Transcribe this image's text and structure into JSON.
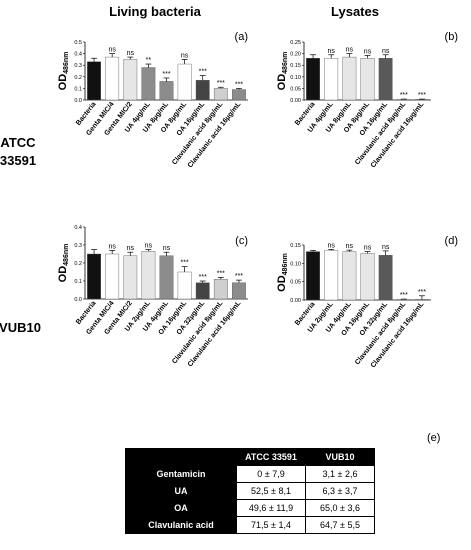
{
  "headers": {
    "col1": "Living bacteria",
    "col2": "Lysates",
    "row1": [
      "ATCC",
      "33591"
    ],
    "row2": "VUB10"
  },
  "y_label_main": "OD",
  "y_label_sub": "486nm",
  "sig_labels": {
    "ns": "ns",
    "s2": "**",
    "s3": "***"
  },
  "colors": {
    "black": "#111111",
    "white": "#ffffff",
    "light": "#e6e6e6",
    "lightgray": "#cfcfcf",
    "gray": "#8c8c8c",
    "dark": "#595959",
    "darker": "#444444"
  },
  "chart_data": [
    {
      "type": "bar",
      "panel": "(a)",
      "ylim": [
        0,
        0.5
      ],
      "yticks": [
        "0.0",
        "0.1",
        "0.2",
        "0.3",
        "0.4",
        "0.5"
      ],
      "ytick_values": [
        0,
        0.1,
        0.2,
        0.3,
        0.4,
        0.5
      ],
      "categories": [
        "Bacteria",
        "Genta MIC/4",
        "Genta MIC/2",
        "UA 4µg/mL",
        "UA 8µg/mL",
        "OA 8µg/mL",
        "OA 16µg/mL",
        "Clavulanic acid 8µg/mL",
        "Clavulanic acid 16µg/mL"
      ],
      "values": [
        0.33,
        0.37,
        0.35,
        0.28,
        0.16,
        0.31,
        0.17,
        0.1,
        0.09
      ],
      "errors": [
        0.03,
        0.03,
        0.02,
        0.03,
        0.03,
        0.04,
        0.04,
        0.01,
        0.01
      ],
      "significance": [
        "",
        "ns",
        "ns",
        "**",
        "***",
        "ns",
        "***",
        "***",
        "***"
      ],
      "colors": [
        "black",
        "white",
        "light",
        "gray",
        "gray",
        "white",
        "darker",
        "lightgray",
        "gray"
      ]
    },
    {
      "type": "bar",
      "panel": "(b)",
      "ylim": [
        0,
        0.25
      ],
      "yticks": [
        "0.00",
        "0.05",
        "0.10",
        "0.15",
        "0.20",
        "0.25"
      ],
      "ytick_values": [
        0,
        0.05,
        0.1,
        0.15,
        0.2,
        0.25
      ],
      "categories": [
        "Bacteria",
        "UA 4µg/mL",
        "UA 8µg/mL",
        "OA 8µg/mL",
        "OA 16µg/mL",
        "Clavulanic acid 8µg/mL",
        "Clavulanic acid 16µg/mL"
      ],
      "values": [
        0.18,
        0.18,
        0.185,
        0.18,
        0.18,
        0.002,
        0.002
      ],
      "errors": [
        0.015,
        0.015,
        0.015,
        0.012,
        0.015,
        0.002,
        0.002
      ],
      "significance": [
        "",
        "ns",
        "ns",
        "ns",
        "ns",
        "***",
        "***"
      ],
      "colors": [
        "black",
        "white",
        "light",
        "light",
        "dark",
        "lightgray",
        "gray"
      ]
    },
    {
      "type": "bar",
      "panel": "(c)",
      "ylim": [
        0,
        0.4
      ],
      "yticks": [
        "0.0",
        "0.1",
        "0.2",
        "0.3",
        "0.4"
      ],
      "ytick_values": [
        0,
        0.1,
        0.2,
        0.3,
        0.4
      ],
      "categories": [
        "Bacteria",
        "Genta MIC/4",
        "Genta MIC/2",
        "UA 2µg/mL",
        "UA 4µg/mL",
        "OA 16µg/mL",
        "OA 32µg/mL",
        "Clavulanic acid 8µg/mL",
        "Clavulanic acid 16µg/mL"
      ],
      "values": [
        0.25,
        0.25,
        0.24,
        0.265,
        0.24,
        0.15,
        0.09,
        0.11,
        0.09
      ],
      "errors": [
        0.025,
        0.02,
        0.02,
        0.01,
        0.02,
        0.03,
        0.01,
        0.01,
        0.015
      ],
      "significance": [
        "",
        "ns",
        "ns",
        "ns",
        "ns",
        "***",
        "***",
        "***",
        "***"
      ],
      "colors": [
        "black",
        "white",
        "light",
        "light",
        "gray",
        "white",
        "darker",
        "lightgray",
        "gray"
      ]
    },
    {
      "type": "bar",
      "panel": "(d)",
      "ylim": [
        0,
        0.15
      ],
      "yticks": [
        "0.00",
        "0.05",
        "0.10",
        "0.15"
      ],
      "ytick_values": [
        0,
        0.05,
        0.1,
        0.15
      ],
      "categories": [
        "Bacteria",
        "UA 2µg/mL",
        "UA 4µg/mL",
        "OA 16µg/mL",
        "OA 32µg/mL",
        "Clavulanic acid 8µg/mL",
        "Clavulanic acid 16µg/mL"
      ],
      "values": [
        0.132,
        0.135,
        0.132,
        0.127,
        0.122,
        0.0015,
        0.0015
      ],
      "errors": [
        0.003,
        0.003,
        0.004,
        0.005,
        0.012,
        0.001,
        0.01
      ],
      "significance": [
        "",
        "ns",
        "ns",
        "ns",
        "ns",
        "***",
        "***"
      ],
      "colors": [
        "black",
        "white",
        "light",
        "light",
        "dark",
        "lightgray",
        "gray"
      ]
    }
  ],
  "table": {
    "panel": "(e)",
    "columns": [
      "ATCC 33591",
      "VUB10"
    ],
    "rows": [
      {
        "label": "Gentamicin",
        "values": [
          "0 ± 7,9",
          "3,1 ± 2,6"
        ]
      },
      {
        "label": "UA",
        "values": [
          "52,5 ± 8,1",
          "6,3 ± 3,7"
        ]
      },
      {
        "label": "OA",
        "values": [
          "49,6 ± 11,9",
          "65,0 ± 3,6"
        ]
      },
      {
        "label": "Clavulanic acid",
        "values": [
          "71,5 ± 1,4",
          "64,7 ± 5,5"
        ]
      }
    ]
  }
}
